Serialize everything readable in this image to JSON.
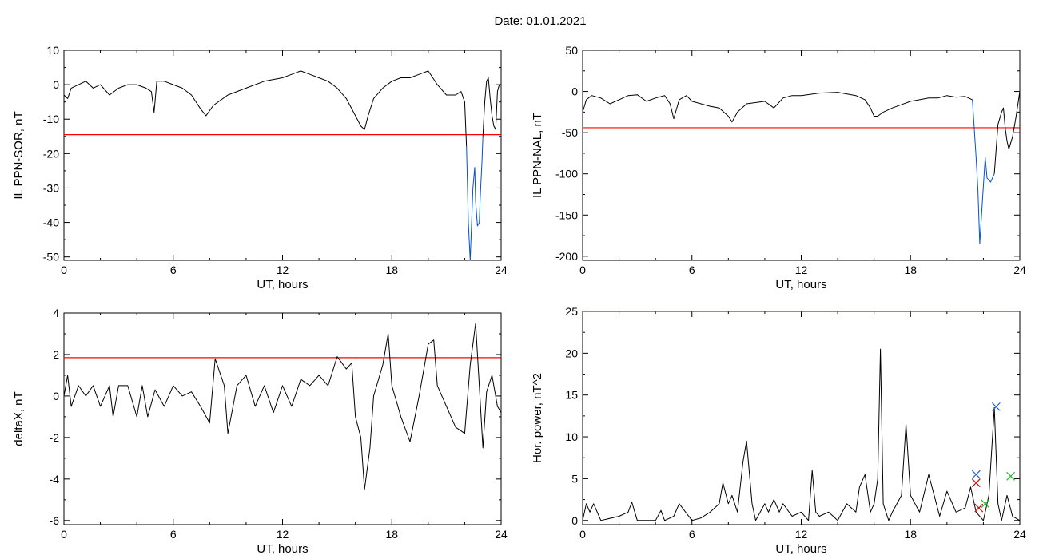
{
  "title": "Date:  01.01.2021",
  "colors": {
    "axis": "#000000",
    "trace": "#000000",
    "threshold": "#ff0000",
    "highlight": "#0050d8",
    "marker_red": "#e00000",
    "marker_blue": "#2060d0",
    "marker_green": "#20c020"
  },
  "chart_data": [
    {
      "type": "line",
      "ylabel": "IL PPN-SOR, nT",
      "xlabel": "UT, hours",
      "xlim": [
        0,
        24
      ],
      "ylim": [
        -51,
        10
      ],
      "xticks": [
        0,
        6,
        12,
        18,
        24
      ],
      "yticks": [
        10,
        0,
        -10,
        -20,
        -30,
        -40,
        -50
      ],
      "threshold": -14.5,
      "series": [
        {
          "x": [
            0,
            0.2,
            0.4,
            0.8,
            1.2,
            1.6,
            2.0,
            2.5,
            3.0,
            3.5,
            4.0,
            4.5,
            4.8,
            4.95,
            5.1,
            5.5,
            6.0,
            6.5,
            7.0,
            7.5,
            7.8,
            8.2,
            9.0,
            10.0,
            11.0,
            12.0,
            12.5,
            13.0,
            13.5,
            14.0,
            14.5,
            15.0,
            15.5,
            16.0,
            16.3,
            16.5,
            16.7,
            17.0,
            17.5,
            18.0,
            18.5,
            19.0,
            19.5,
            20.0,
            20.5,
            21.0,
            21.5,
            21.8,
            22.0,
            22.1
          ],
          "y": [
            -3,
            -4,
            -1,
            0,
            1,
            -1,
            0,
            -3,
            -1,
            0,
            0,
            -1,
            -2,
            -8,
            1,
            1,
            0,
            -1,
            -3,
            -7,
            -9,
            -6,
            -3,
            -1,
            1,
            2,
            3,
            4,
            3,
            2,
            1,
            -1,
            -4,
            -9,
            -12,
            -13,
            -9,
            -4,
            -1,
            1,
            2,
            2,
            3,
            4,
            0,
            -3,
            -3,
            -2,
            -5,
            -18
          ]
        },
        {
          "x": [
            22.1,
            22.2,
            22.3,
            22.45,
            22.55,
            22.6,
            22.7,
            22.8,
            22.85,
            22.95,
            23.0
          ],
          "y": [
            -18,
            -40,
            -51,
            -30,
            -24,
            -34,
            -41,
            -40,
            -33,
            -22,
            -15
          ]
        },
        {
          "x": [
            23.0,
            23.1,
            23.2,
            23.3,
            23.4,
            23.5,
            23.6,
            23.7,
            23.8,
            23.9,
            24.0
          ],
          "y": [
            -15,
            -5,
            1,
            2,
            -4,
            -9,
            -12,
            -13,
            -2,
            0,
            0
          ]
        }
      ]
    },
    {
      "type": "line",
      "ylabel": "IL PPN-NAL, nT",
      "xlabel": "UT, hours",
      "xlim": [
        0,
        24
      ],
      "ylim": [
        -205,
        50
      ],
      "xticks": [
        0,
        6,
        12,
        18,
        24
      ],
      "yticks": [
        50,
        0,
        -50,
        -100,
        -150,
        -200
      ],
      "threshold": -44,
      "series": [
        {
          "x": [
            0,
            0.2,
            0.5,
            1.0,
            1.5,
            2.0,
            2.5,
            3.0,
            3.5,
            4.0,
            4.5,
            4.8,
            5.0,
            5.3,
            5.7,
            6.0,
            6.5,
            7.0,
            7.5,
            8.0,
            8.2,
            8.5,
            9.0,
            10.0,
            10.5,
            11.0,
            11.5,
            12.0,
            13.0,
            14.0,
            15.0,
            15.5,
            15.8,
            16.0,
            16.2,
            16.5,
            17.0,
            18.0,
            19.0,
            19.5,
            20.0,
            20.5,
            21.0,
            21.4
          ],
          "y": [
            -25,
            -10,
            -5,
            -8,
            -15,
            -10,
            -5,
            -4,
            -12,
            -8,
            -5,
            -15,
            -33,
            -10,
            -5,
            -12,
            -15,
            -18,
            -20,
            -30,
            -37,
            -25,
            -15,
            -12,
            -20,
            -8,
            -5,
            -5,
            -2,
            -1,
            -5,
            -10,
            -20,
            -30,
            -30,
            -25,
            -20,
            -12,
            -8,
            -8,
            -5,
            -7,
            -6,
            -10
          ]
        },
        {
          "x": [
            21.4,
            21.6,
            21.7,
            21.8,
            21.9,
            22.1,
            22.2,
            22.4,
            22.6
          ],
          "y": [
            -10,
            -80,
            -120,
            -185,
            -150,
            -80,
            -105,
            -110,
            -100
          ]
        },
        {
          "x": [
            22.6,
            22.8,
            23.0,
            23.1,
            23.2,
            23.3,
            23.4,
            23.6,
            23.8,
            24.0
          ],
          "y": [
            -100,
            -40,
            -25,
            -20,
            -45,
            -60,
            -70,
            -55,
            -30,
            0
          ]
        }
      ]
    },
    {
      "type": "line",
      "ylabel": "deltaX, nT",
      "xlabel": "UT, hours",
      "xlim": [
        0,
        24
      ],
      "ylim": [
        -6.2,
        4
      ],
      "xticks": [
        0,
        6,
        12,
        18,
        24
      ],
      "yticks": [
        4,
        2,
        0,
        -2,
        -4,
        -6
      ],
      "threshold": 1.85,
      "series": [
        {
          "x": [
            0,
            0.2,
            0.4,
            0.8,
            1.2,
            1.6,
            2.0,
            2.5,
            2.7,
            3.0,
            3.5,
            4.0,
            4.3,
            4.6,
            5.0,
            5.5,
            6.0,
            6.5,
            7.0,
            7.5,
            8.0,
            8.3,
            8.8,
            9.0,
            9.5,
            10.0,
            10.5,
            11.0,
            11.5,
            12.0,
            12.5,
            13.0,
            13.5,
            14.0,
            14.5,
            15.0,
            15.5,
            15.8,
            16.0,
            16.3,
            16.5,
            16.8,
            17.0,
            17.5,
            17.8,
            18.0,
            18.5,
            19.0,
            19.5,
            20.0,
            20.3,
            20.5,
            21.0,
            21.5,
            22.0,
            22.3,
            22.6,
            22.8,
            23.0,
            23.2,
            23.5,
            23.8,
            24.0
          ],
          "y": [
            0,
            1,
            -0.5,
            0.5,
            0,
            0.5,
            -0.5,
            0.5,
            -1,
            0.5,
            0.5,
            -1,
            0.5,
            -1,
            0.3,
            -0.5,
            0.5,
            0,
            0.2,
            -0.5,
            -1.3,
            1.8,
            0.5,
            -1.8,
            0.5,
            1,
            -0.5,
            0.5,
            -0.8,
            0.5,
            -0.5,
            0.8,
            0.5,
            1,
            0.5,
            1.9,
            1.3,
            1.6,
            -1,
            -2,
            -4.5,
            -2.5,
            0,
            1.5,
            3,
            0.5,
            -1,
            -2.2,
            0,
            2.5,
            2.7,
            0.5,
            -0.5,
            -1.5,
            -1.8,
            1.5,
            3.5,
            0.5,
            -2.5,
            0.2,
            1,
            -0.5,
            -0.8
          ]
        }
      ]
    },
    {
      "type": "line",
      "ylabel": "Hor. power, nT^2",
      "xlabel": "UT, hours",
      "xlim": [
        0,
        24
      ],
      "ylim": [
        -0.5,
        25
      ],
      "xticks": [
        0,
        6,
        12,
        18,
        24
      ],
      "yticks": [
        25,
        20,
        15,
        10,
        5,
        0
      ],
      "threshold": 25,
      "series": [
        {
          "x": [
            0,
            0.2,
            0.4,
            0.6,
            1.0,
            2.0,
            2.5,
            2.7,
            3.0,
            4.0,
            4.3,
            4.5,
            5.0,
            5.3,
            6.0,
            6.5,
            7.0,
            7.5,
            7.7,
            8.0,
            8.2,
            8.5,
            8.8,
            9.0,
            9.3,
            9.5,
            10.0,
            10.2,
            10.5,
            10.8,
            11.0,
            11.5,
            12.0,
            12.4,
            12.6,
            12.8,
            13.0,
            13.5,
            14.0,
            14.5,
            15.0,
            15.2,
            15.5,
            15.8,
            16.0,
            16.2,
            16.35,
            16.5,
            16.8,
            17.0,
            17.5,
            17.75,
            18.0,
            18.5,
            19.0,
            19.3,
            19.6,
            20.0,
            20.5,
            21.0,
            21.3,
            21.6,
            22.0,
            22.3,
            22.6,
            22.8,
            23.0,
            23.3,
            23.6,
            24.0
          ],
          "y": [
            0,
            2,
            1,
            2,
            0,
            0.5,
            1,
            2.2,
            0,
            0,
            1.2,
            0,
            0.5,
            2,
            0,
            0.3,
            1,
            2,
            4.5,
            2,
            3,
            1,
            7,
            9.5,
            2,
            0,
            2,
            1,
            2.5,
            1,
            2,
            0.5,
            1,
            0,
            6,
            1,
            0.5,
            1,
            0,
            2,
            1,
            4,
            5.5,
            1,
            2,
            5,
            20.5,
            2,
            0,
            1,
            3,
            11.5,
            3,
            1,
            5.5,
            3,
            0.5,
            3.5,
            1,
            1.5,
            4,
            1,
            0,
            3,
            13.5,
            2,
            0,
            3,
            0.5,
            0
          ]
        }
      ],
      "markers": [
        {
          "x": 21.6,
          "y": 4.5,
          "color": "red"
        },
        {
          "x": 21.6,
          "y": 5.5,
          "color": "blue"
        },
        {
          "x": 21.75,
          "y": 1.5,
          "color": "red"
        },
        {
          "x": 22.1,
          "y": 2.0,
          "color": "green"
        },
        {
          "x": 22.7,
          "y": 13.6,
          "color": "blue"
        },
        {
          "x": 23.5,
          "y": 5.3,
          "color": "green"
        }
      ]
    }
  ]
}
